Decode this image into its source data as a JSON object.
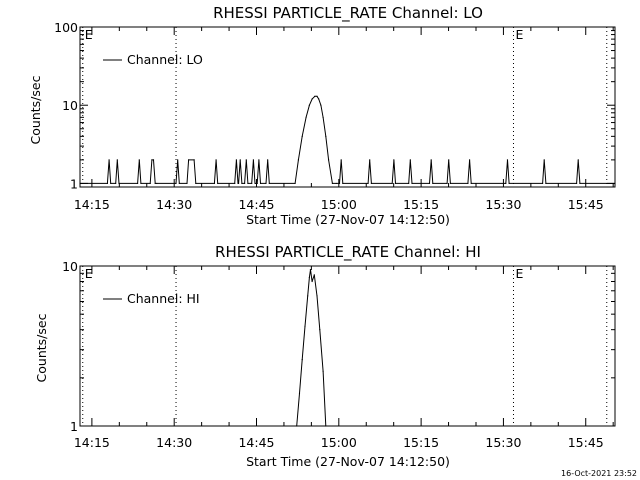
{
  "footer": {
    "date_stamp": "16-Oct-2021 23:52"
  },
  "chart_data": [
    {
      "type": "line",
      "title": "RHESSI PARTICLE_RATE Channel: LO",
      "xlabel": "Start Time (27-Nov-07 14:12:50)",
      "ylabel": "Counts/sec",
      "x_unit": "minutes after 14:12:50",
      "xlim": [
        0,
        97.5
      ],
      "ylim": [
        0.9,
        100
      ],
      "y_scale": "log",
      "xtick_labels": [
        "14:15",
        "14:30",
        "14:45",
        "15:00",
        "15:15",
        "15:30",
        "15:45"
      ],
      "ytick_labels": [
        "1",
        "10",
        "100"
      ],
      "legend": {
        "label": "Channel: LO",
        "position": "top-left"
      },
      "event_markers": [
        {
          "x": 0.5,
          "label": "E"
        },
        {
          "x": 17.5,
          "label": ""
        },
        {
          "x": 79.0,
          "label": "E"
        },
        {
          "x": 96.0,
          "label": ""
        }
      ],
      "series": [
        {
          "name": "Channel: LO",
          "x": [
            0,
            5,
            5.3,
            5.6,
            6.5,
            6.8,
            7.1,
            10.5,
            10.8,
            11.1,
            12.8,
            13.1,
            13.4,
            13.7,
            14,
            17.5,
            17.8,
            18.1,
            19.5,
            19.8,
            20.8,
            21.1,
            24.5,
            24.8,
            25.1,
            28.2,
            28.5,
            28.8,
            28.9,
            29.2,
            29.5,
            30.0,
            30.3,
            30.6,
            31.3,
            31.6,
            31.9,
            32.3,
            32.6,
            32.9,
            33.9,
            34.2,
            34.5,
            39.2,
            39.8,
            40.5,
            41.2,
            41.8,
            42.3,
            42.8,
            43.2,
            43.5,
            43.9,
            44.3,
            44.8,
            45.3,
            46.0,
            46.7,
            47.3,
            47.6,
            47.9,
            52.5,
            52.8,
            53.1,
            56.9,
            57.2,
            57.5,
            59.9,
            60.2,
            60.5,
            63.7,
            64.0,
            64.3,
            66.9,
            67.2,
            67.5,
            70.7,
            71.0,
            71.3,
            77.6,
            77.9,
            78.2,
            84.3,
            84.6,
            84.9,
            90.5,
            90.8,
            91.1,
            97.5
          ],
          "y": [
            1,
            1,
            2,
            1,
            1,
            2,
            1,
            1,
            2,
            1,
            1,
            2,
            2,
            1,
            1,
            1,
            2,
            1,
            1,
            2,
            2,
            1,
            1,
            2,
            1,
            1,
            2,
            1,
            1,
            2,
            1,
            1,
            2,
            1,
            1,
            2,
            1,
            1,
            2,
            1,
            1,
            2,
            1,
            1,
            2,
            4,
            7,
            10,
            12,
            13,
            13,
            12,
            10,
            7,
            4,
            2,
            1,
            1,
            1,
            2,
            1,
            1,
            2,
            1,
            1,
            2,
            1,
            1,
            2,
            1,
            1,
            2,
            1,
            1,
            2,
            1,
            1,
            2,
            1,
            1,
            2,
            1,
            1,
            2,
            1,
            1,
            2,
            1,
            1
          ]
        }
      ]
    },
    {
      "type": "line",
      "title": "RHESSI PARTICLE_RATE Channel: HI",
      "xlabel": "Start Time (27-Nov-07 14:12:50)",
      "ylabel": "Counts/sec",
      "x_unit": "minutes after 14:12:50",
      "xlim": [
        0,
        97.5
      ],
      "ylim": [
        1,
        10
      ],
      "y_scale": "log",
      "xtick_labels": [
        "14:15",
        "14:30",
        "14:45",
        "15:00",
        "15:15",
        "15:30",
        "15:45"
      ],
      "ytick_labels": [
        "1",
        "10"
      ],
      "legend": {
        "label": "Channel: HI",
        "position": "top-left"
      },
      "event_markers": [
        {
          "x": 0.5,
          "label": "E"
        },
        {
          "x": 17.5,
          "label": ""
        },
        {
          "x": 79.0,
          "label": "E"
        },
        {
          "x": 96.0,
          "label": ""
        }
      ],
      "series": [
        {
          "name": "Channel: HI",
          "x": [
            39.5,
            40.0,
            40.5,
            41.0,
            41.5,
            41.8,
            42.0,
            42.3,
            42.7,
            43.2,
            43.7,
            44.3,
            44.8
          ],
          "y": [
            1,
            1.6,
            2.6,
            4.2,
            6.5,
            8.5,
            9.5,
            8.0,
            8.8,
            6.5,
            4.0,
            2.2,
            1
          ]
        }
      ]
    }
  ]
}
